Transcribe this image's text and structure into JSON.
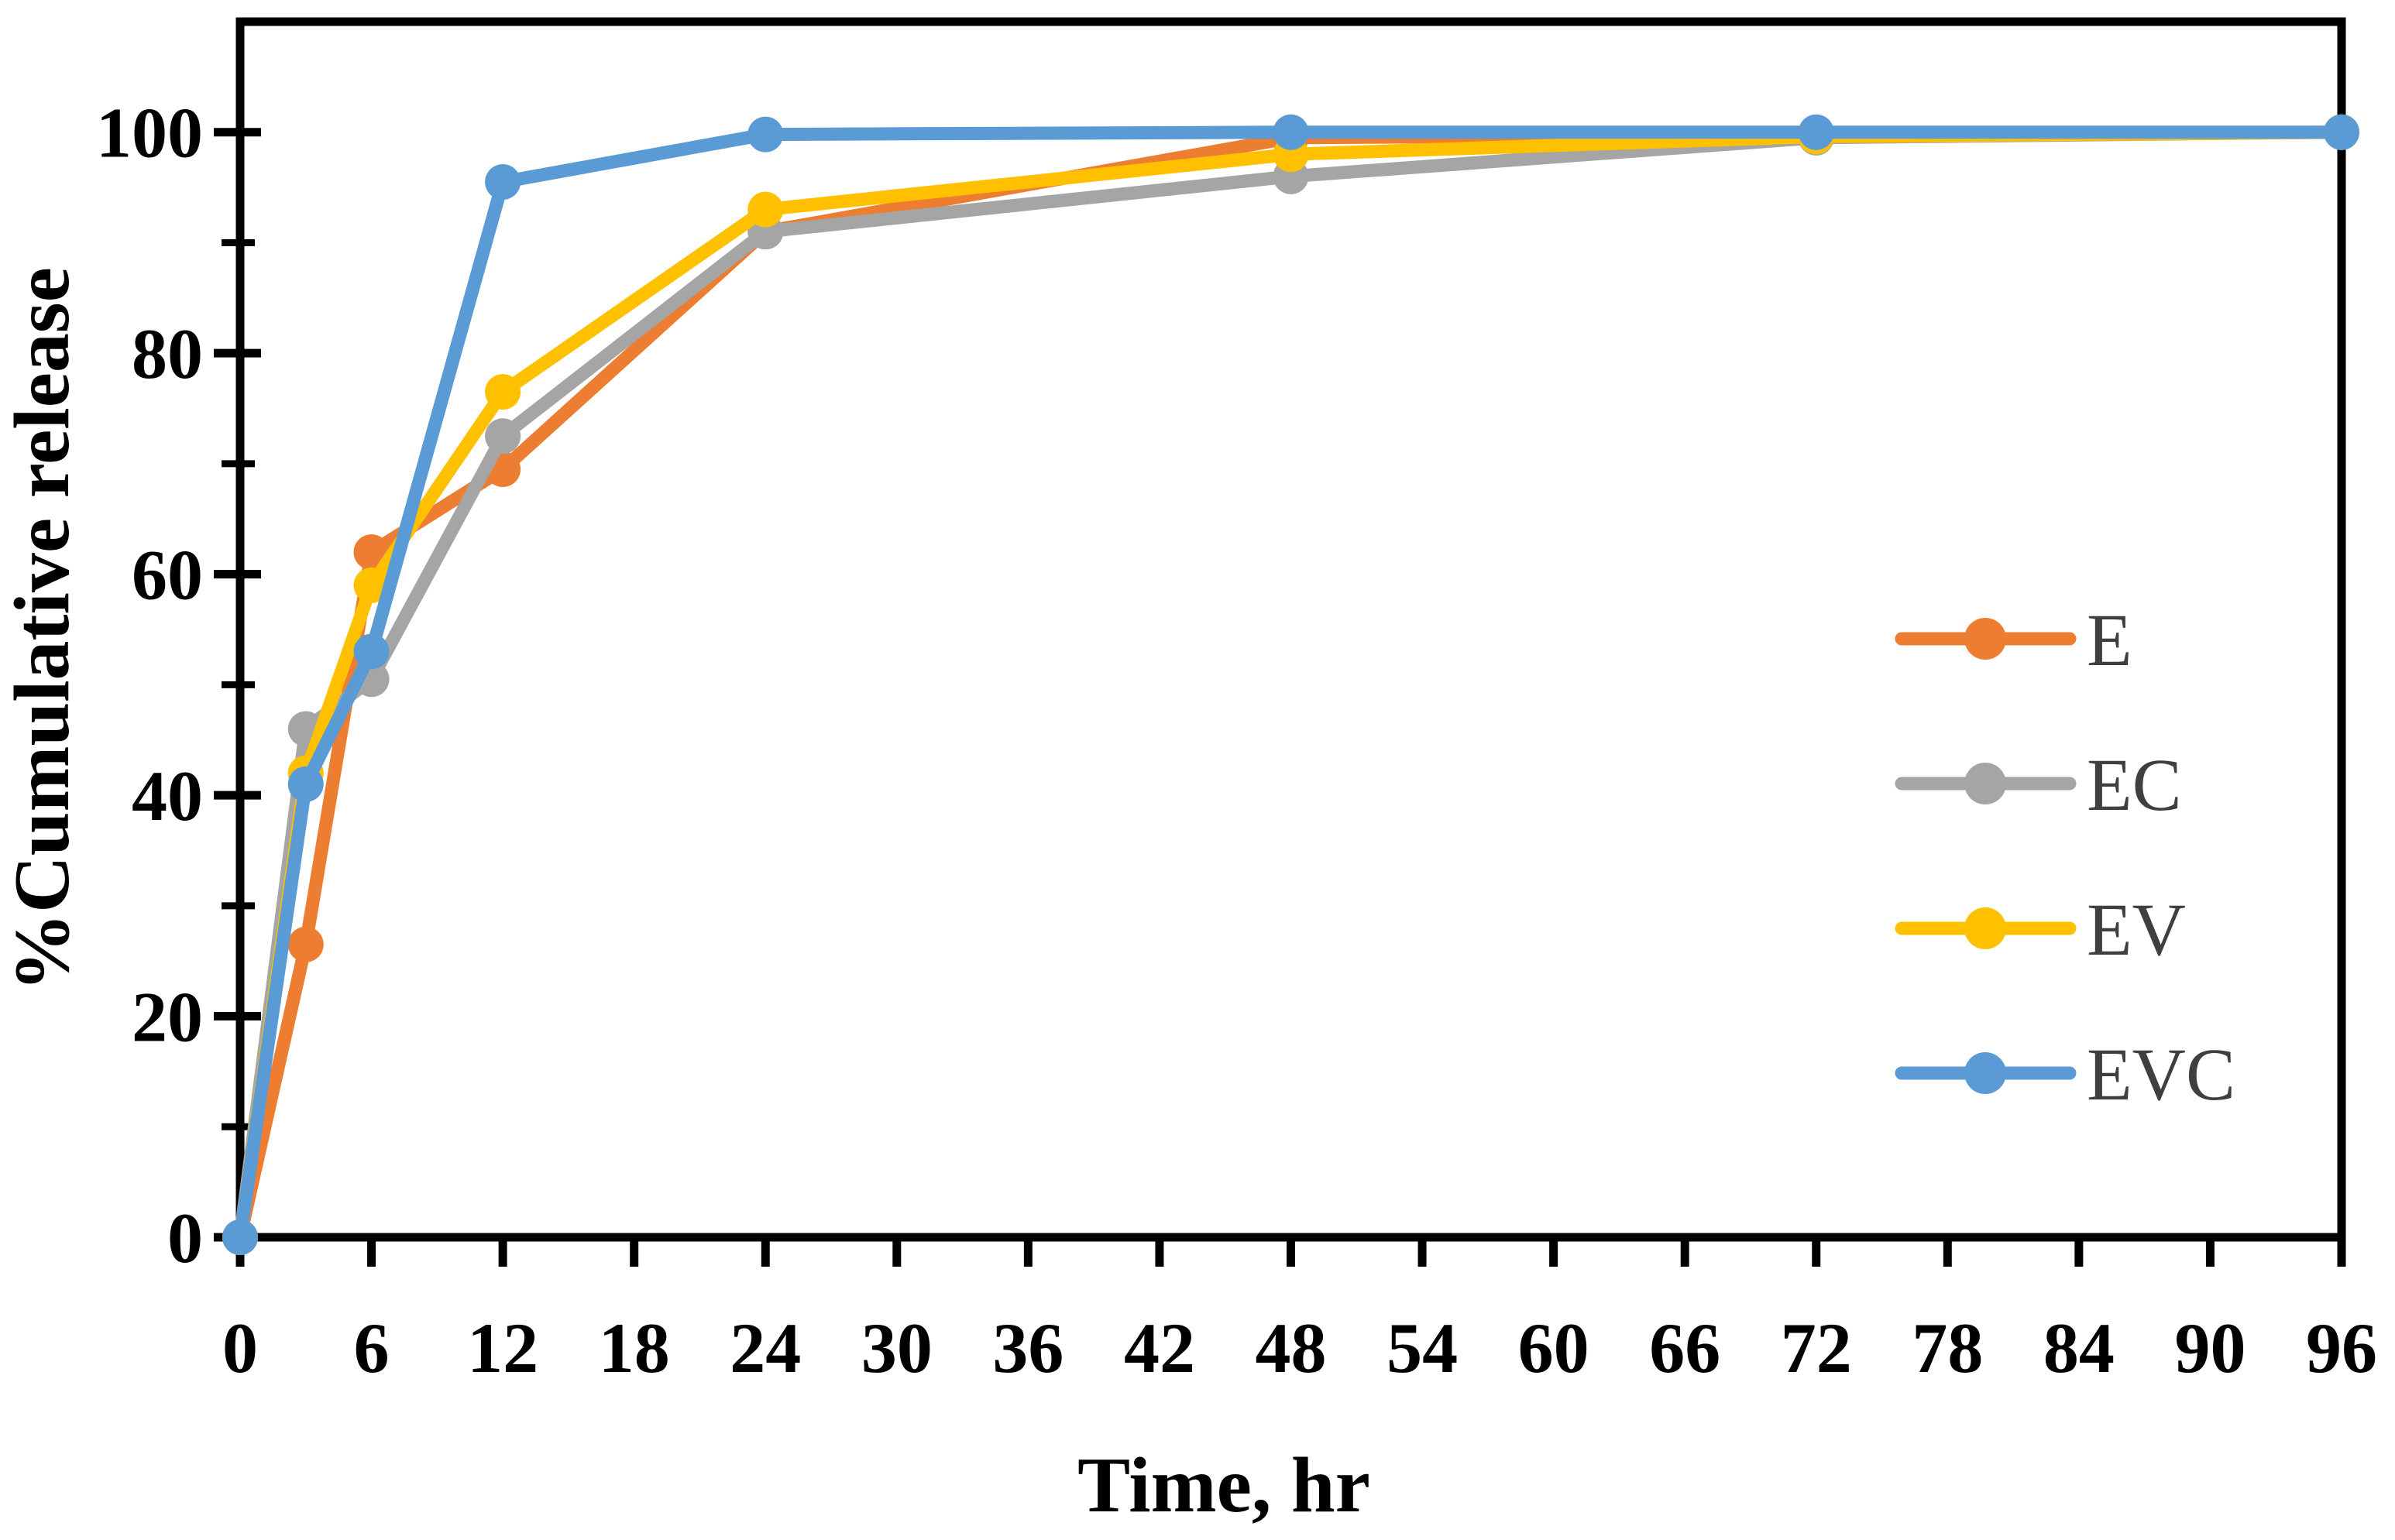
{
  "page": {
    "background": "#FFFFFF"
  },
  "chart_data": {
    "type": "line",
    "title": "",
    "xlabel": "Time, hr",
    "ylabel": "%Cumulative release",
    "x": [
      0,
      3,
      6,
      12,
      24,
      48,
      72,
      96
    ],
    "series": [
      {
        "name": "E",
        "color": "#ED7D31",
        "values": [
          0,
          26.5,
          62,
          69.5,
          91,
          99.5,
          99.8,
          100
        ]
      },
      {
        "name": "EC",
        "color": "#A5A5A5",
        "values": [
          0,
          46,
          50.5,
          72.5,
          91,
          96,
          99.5,
          100
        ]
      },
      {
        "name": "EV",
        "color": "#FFC000",
        "values": [
          0,
          42,
          59,
          76.5,
          93,
          98,
          99.6,
          100
        ]
      },
      {
        "name": "EVC",
        "color": "#5B9BD5",
        "values": [
          0,
          41,
          53,
          95.5,
          99.8,
          100,
          100,
          100
        ]
      }
    ],
    "x_ticks": [
      0,
      6,
      12,
      18,
      24,
      30,
      36,
      42,
      48,
      54,
      60,
      66,
      72,
      78,
      84,
      90,
      96
    ],
    "y_major_ticks": [
      0,
      20,
      40,
      60,
      80,
      100
    ],
    "y_minor_ticks": [
      10,
      30,
      50,
      70,
      90
    ],
    "xlim": [
      0,
      96
    ],
    "ylim": [
      0,
      110
    ],
    "grid": false,
    "legend_position": "inside-right",
    "axis_color": "#000000",
    "tick_label_color": "#000000",
    "legend_text_color": "#3F3F3F",
    "plot_background": "#FFFFFF"
  }
}
